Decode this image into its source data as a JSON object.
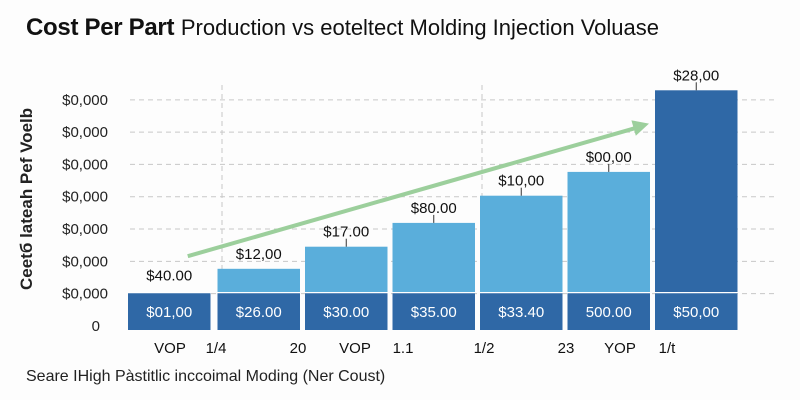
{
  "chart_data": {
    "type": "bar",
    "title_bold": "Cost Per Part",
    "title_rest": "Production vs eoteltect Molding Injection Voluase",
    "ylabel": "Ceetб lateah  Pef Voelb",
    "xlabel": "Seare IHigh Pàstitlic inccoimal Moding (Ner Coust)",
    "y_tick_labels": [
      "0",
      "$0,000",
      "$0,000",
      "$0,000",
      "$0,000",
      "$0,000",
      "$0,000",
      "$0,000"
    ],
    "x_tick_labels": [
      "VOP",
      "1/4",
      "20",
      "VOP",
      "1.1",
      "1/2",
      "23",
      "YOP",
      "1/t"
    ],
    "ylim": [
      0,
      7.2
    ],
    "grid": true,
    "series": [
      {
        "role": "base",
        "values": [
          1.1,
          1.1,
          1.1,
          1.1,
          1.1,
          1.1,
          1.1
        ],
        "labels": [
          "$01,00",
          "$26.00",
          "$30.00",
          "$35.00",
          "$33.40",
          "500.00",
          "$50,00"
        ]
      },
      {
        "role": "total",
        "values": [
          1.1,
          1.8,
          2.45,
          3.15,
          3.95,
          4.65,
          7.05
        ],
        "labels": [
          "$40.00",
          "$12,00",
          "$17.00",
          "$80.00",
          "$10,00",
          "$00,00",
          "$28,00"
        ]
      }
    ],
    "trend_arrow": {
      "from": [
        0.5,
        2.2
      ],
      "to": [
        6.0,
        6.1
      ]
    },
    "colors": {
      "base": "#2f68a6",
      "total": "#5aaedb",
      "last_bar": "#2f68a6",
      "trend": "#9ccf9c",
      "grid": "#c8c8c8"
    }
  }
}
